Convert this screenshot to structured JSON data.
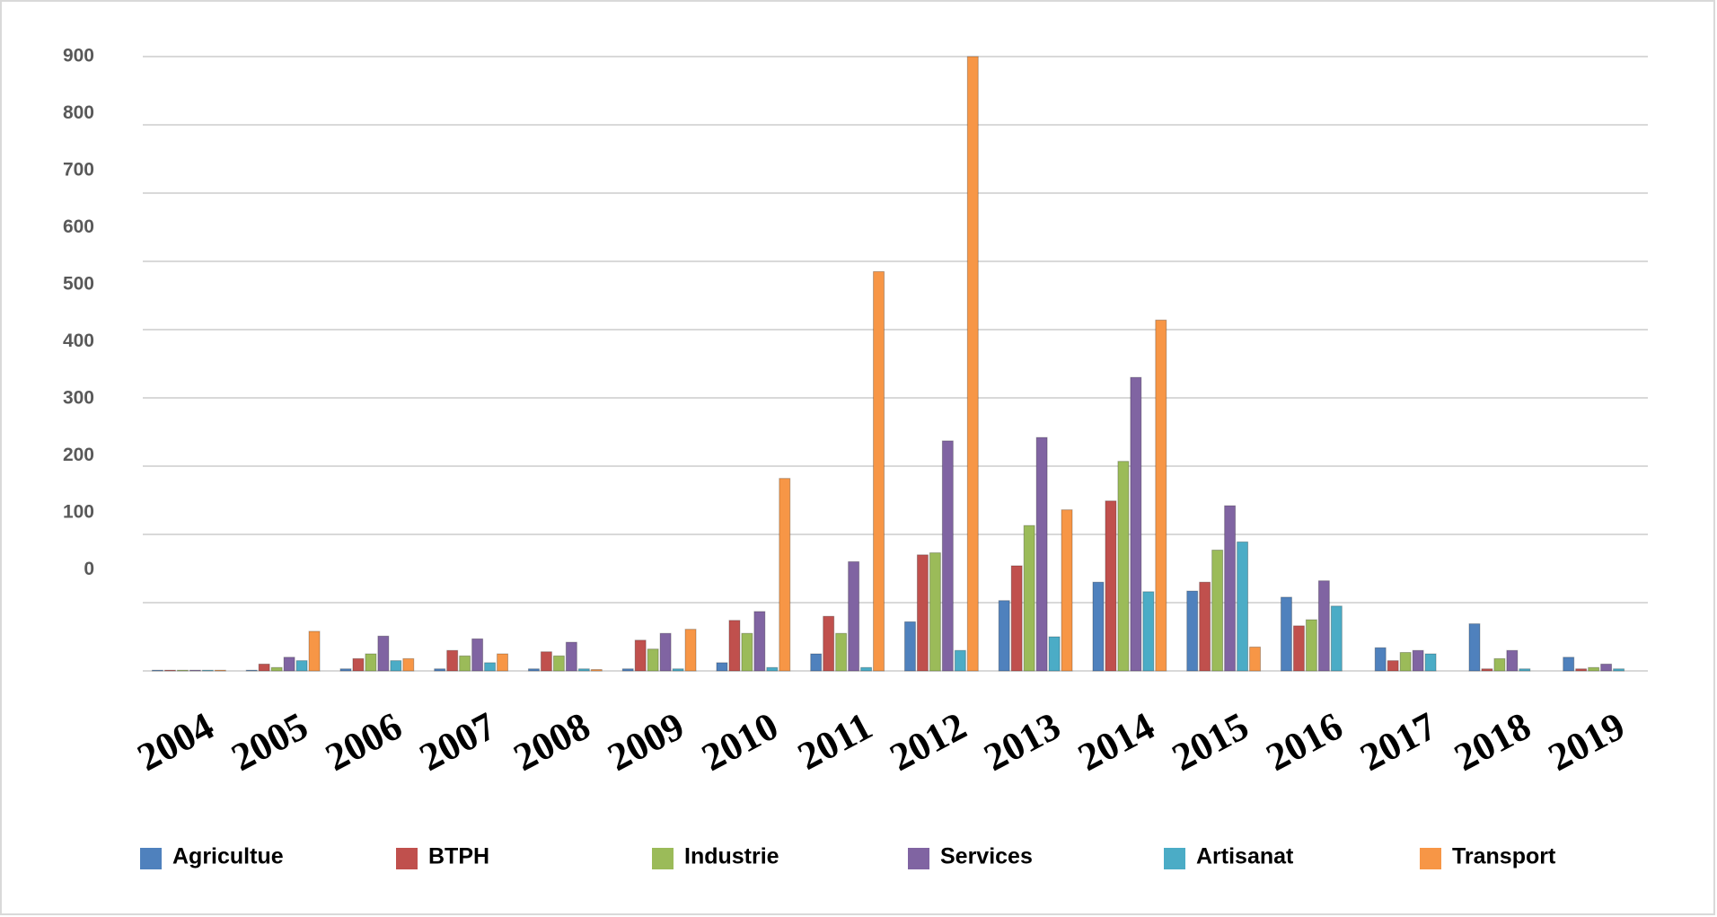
{
  "chart_data": {
    "type": "bar",
    "categories": [
      "2004",
      "2005",
      "2006",
      "2007",
      "2008",
      "2009",
      "2010",
      "2011",
      "2012",
      "2013",
      "2014",
      "2015",
      "2016",
      "2017",
      "2018",
      "2019"
    ],
    "series": [
      {
        "name": "Agricultue",
        "color": "#4f81bd",
        "values": [
          1,
          1,
          3,
          3,
          3,
          3,
          12,
          25,
          72,
          103,
          130,
          117,
          108,
          34,
          69,
          20
        ]
      },
      {
        "name": "BTPH",
        "color": "#c0504d",
        "values": [
          1,
          10,
          18,
          30,
          28,
          45,
          74,
          80,
          170,
          154,
          249,
          130,
          66,
          15,
          3,
          3
        ]
      },
      {
        "name": "Industrie",
        "color": "#9bbb59",
        "values": [
          1,
          5,
          25,
          22,
          22,
          32,
          55,
          55,
          173,
          213,
          307,
          177,
          75,
          27,
          18,
          5
        ]
      },
      {
        "name": "Services",
        "color": "#8064a2",
        "values": [
          1,
          20,
          51,
          47,
          42,
          55,
          87,
          160,
          337,
          342,
          430,
          242,
          132,
          30,
          30,
          10
        ]
      },
      {
        "name": "Artisanat",
        "color": "#4bacc6",
        "values": [
          1,
          15,
          15,
          12,
          3,
          3,
          5,
          5,
          30,
          50,
          116,
          189,
          95,
          25,
          3,
          3
        ]
      },
      {
        "name": "Transport",
        "color": "#f79646",
        "values": [
          1,
          58,
          18,
          25,
          2,
          61,
          282,
          585,
          900,
          236,
          514,
          35,
          0,
          0,
          0,
          0
        ]
      }
    ],
    "ylim": [
      0,
      900
    ],
    "yticks": [
      0,
      100,
      200,
      300,
      400,
      500,
      600,
      700,
      800,
      900
    ],
    "grid": true,
    "legend": "bottom"
  }
}
